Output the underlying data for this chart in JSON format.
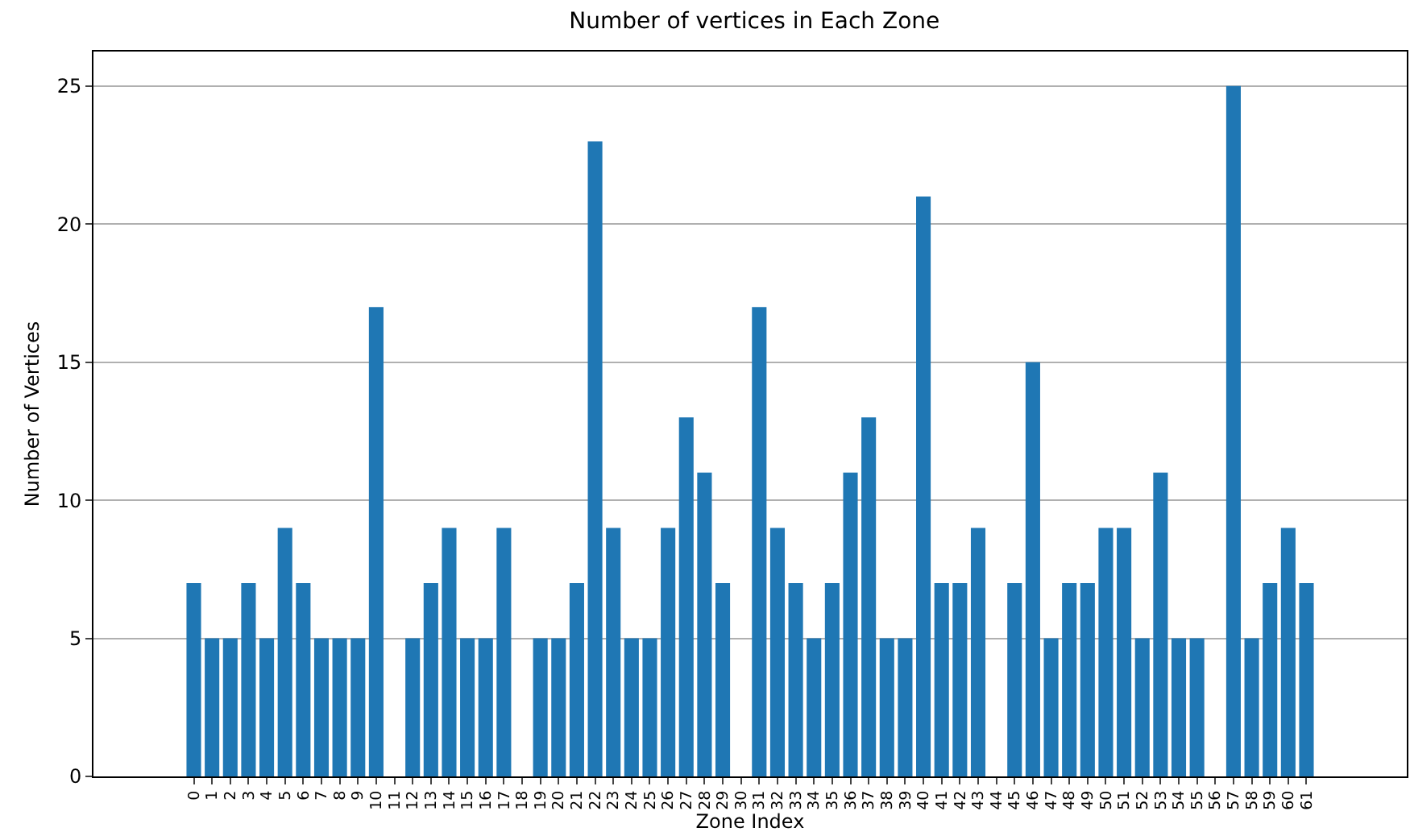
{
  "chart_data": {
    "type": "bar",
    "title": "Number of vertices in Each Zone",
    "xlabel": "Zone Index",
    "ylabel": "Number of Vertices",
    "categories": [
      "0",
      "1",
      "2",
      "3",
      "4",
      "5",
      "6",
      "7",
      "8",
      "9",
      "10",
      "11",
      "12",
      "13",
      "14",
      "15",
      "16",
      "17",
      "18",
      "19",
      "20",
      "21",
      "22",
      "23",
      "24",
      "25",
      "26",
      "27",
      "28",
      "29",
      "30",
      "31",
      "32",
      "33",
      "34",
      "35",
      "36",
      "37",
      "38",
      "39",
      "40",
      "41",
      "42",
      "43",
      "44",
      "45",
      "46",
      "47",
      "48",
      "49",
      "50",
      "51",
      "52",
      "53",
      "54",
      "55",
      "56",
      "57",
      "58",
      "59",
      "60",
      "61"
    ],
    "values": [
      7,
      5,
      5,
      7,
      5,
      9,
      7,
      5,
      5,
      5,
      17,
      0,
      5,
      7,
      9,
      5,
      5,
      9,
      0,
      5,
      5,
      7,
      23,
      9,
      5,
      5,
      9,
      13,
      11,
      7,
      0,
      17,
      9,
      7,
      5,
      7,
      11,
      13,
      5,
      5,
      21,
      7,
      7,
      9,
      0,
      7,
      15,
      5,
      7,
      7,
      9,
      9,
      5,
      11,
      5,
      5,
      0,
      25,
      5,
      7,
      9,
      7
    ],
    "color": "#1f77b4",
    "ylim": [
      0,
      26.25
    ],
    "yticks": [
      0,
      5,
      10,
      15,
      20,
      25
    ],
    "grid": "y"
  }
}
